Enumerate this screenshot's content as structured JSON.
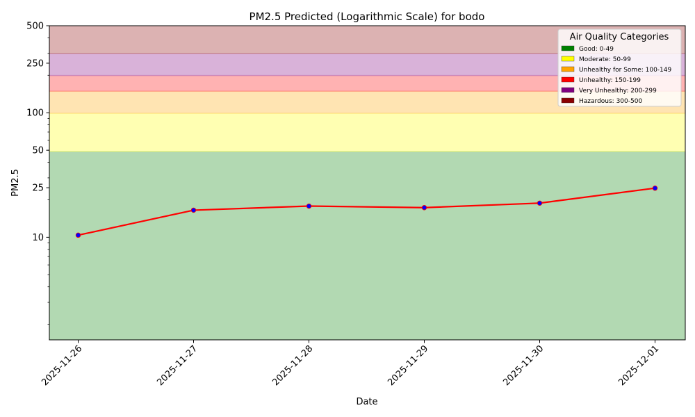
{
  "chart_data": {
    "type": "line",
    "title": "PM2.5 Predicted (Logarithmic Scale) for bodo",
    "xlabel": "Date",
    "ylabel": "PM2.5",
    "yscale": "log",
    "ylim": [
      1.5,
      500
    ],
    "x": [
      "2025-11-26",
      "2025-11-27",
      "2025-11-28",
      "2025-11-29",
      "2025-11-30",
      "2025-12-01"
    ],
    "y_ticks": [
      {
        "value": 10,
        "label": "10"
      },
      {
        "value": 25,
        "label": "25"
      },
      {
        "value": 50,
        "label": "50"
      },
      {
        "value": 100,
        "label": "100"
      },
      {
        "value": 250,
        "label": "250"
      },
      {
        "value": 500,
        "label": "500"
      }
    ],
    "series": [
      {
        "values": [
          10.4,
          16.5,
          17.8,
          17.3,
          18.8,
          24.8
        ],
        "color": "#ff0000",
        "marker_color": "#0000ff"
      }
    ],
    "bands": [
      {
        "from": 0,
        "to": 49,
        "color": "#008000"
      },
      {
        "from": 49,
        "to": 99,
        "color": "#ffff00"
      },
      {
        "from": 99,
        "to": 149,
        "color": "#ffa500"
      },
      {
        "from": 149,
        "to": 199,
        "color": "#ff0000"
      },
      {
        "from": 199,
        "to": 299,
        "color": "#800080"
      },
      {
        "from": 299,
        "to": 500,
        "color": "#8b0000"
      }
    ],
    "legend": {
      "title": "Air Quality Categories",
      "placement": "top-right",
      "items": [
        {
          "label": "Good: 0-49",
          "color": "#008000"
        },
        {
          "label": "Moderate: 50-99",
          "color": "#ffff00"
        },
        {
          "label": "Unhealthy for Some: 100-149",
          "color": "#ffa500"
        },
        {
          "label": "Unhealthy: 150-199",
          "color": "#ff0000"
        },
        {
          "label": "Very Unhealthy: 200-299",
          "color": "#800080"
        },
        {
          "label": "Hazardous: 300-500",
          "color": "#8b0000"
        }
      ]
    }
  }
}
